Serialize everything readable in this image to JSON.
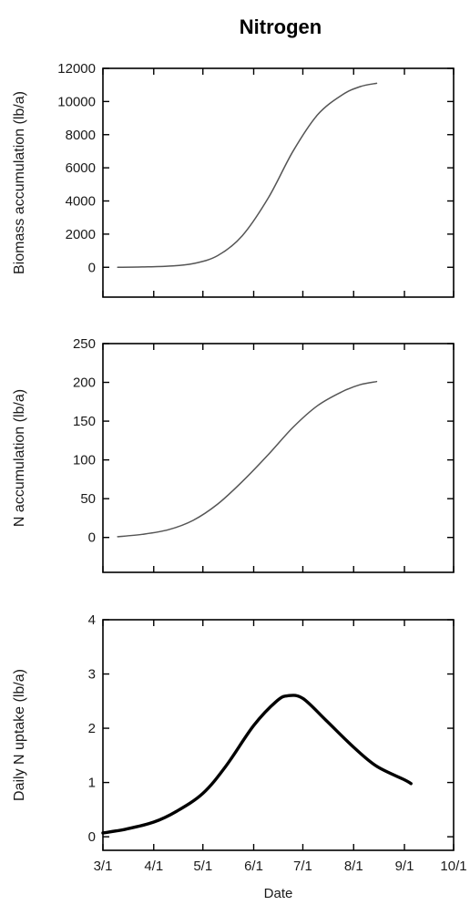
{
  "figure_title": "Nitrogen",
  "chart_data": [
    {
      "type": "line",
      "title": "",
      "xlabel": "",
      "ylabel": "Biomass accumulation (lb/a)",
      "xlim": [
        "3/1",
        "10/1"
      ],
      "ylim": [
        -1800,
        12000
      ],
      "yticks": [
        0,
        2000,
        4000,
        6000,
        8000,
        10000,
        12000
      ],
      "xticks": [
        "3/1",
        "4/1",
        "5/1",
        "6/1",
        "7/1",
        "8/1",
        "9/1",
        "10/1"
      ],
      "show_xtick_labels": false,
      "line_weight": "thin",
      "series": [
        {
          "x": [
            "3/10",
            "3/25",
            "4/10",
            "4/25",
            "5/10",
            "5/25",
            "6/10",
            "6/25",
            "7/10",
            "7/25",
            "8/5",
            "8/15"
          ],
          "y": [
            0,
            20,
            70,
            220,
            700,
            1900,
            4200,
            7000,
            9200,
            10400,
            10900,
            11100
          ]
        }
      ]
    },
    {
      "type": "line",
      "title": "",
      "xlabel": "",
      "ylabel": "N accumulation (lb/a)",
      "xlim": [
        "3/1",
        "10/1"
      ],
      "ylim": [
        -45,
        250
      ],
      "yticks": [
        0,
        50,
        100,
        150,
        200,
        250
      ],
      "xticks": [
        "3/1",
        "4/1",
        "5/1",
        "6/1",
        "7/1",
        "8/1",
        "9/1",
        "10/1"
      ],
      "show_xtick_labels": false,
      "line_weight": "thin",
      "series": [
        {
          "x": [
            "3/10",
            "3/25",
            "4/10",
            "4/25",
            "5/10",
            "5/25",
            "6/10",
            "6/25",
            "7/10",
            "7/25",
            "8/5",
            "8/15"
          ],
          "y": [
            1,
            4,
            10,
            22,
            43,
            72,
            107,
            142,
            170,
            188,
            197,
            201
          ]
        }
      ]
    },
    {
      "type": "line",
      "title": "",
      "xlabel": "Date",
      "ylabel": "Daily N uptake (lb/a)",
      "xlim": [
        "3/1",
        "10/1"
      ],
      "ylim": [
        -0.25,
        4
      ],
      "yticks": [
        0,
        1,
        2,
        3,
        4
      ],
      "xticks": [
        "3/1",
        "4/1",
        "5/1",
        "6/1",
        "7/1",
        "8/1",
        "9/1",
        "10/1"
      ],
      "show_xtick_labels": true,
      "line_weight": "thick",
      "series": [
        {
          "x": [
            "3/1",
            "3/15",
            "4/1",
            "4/15",
            "5/1",
            "5/15",
            "6/1",
            "6/15",
            "6/22",
            "7/1",
            "7/15",
            "8/1",
            "8/15",
            "9/1",
            "9/5"
          ],
          "y": [
            0.07,
            0.14,
            0.27,
            0.47,
            0.8,
            1.3,
            2.05,
            2.5,
            2.6,
            2.55,
            2.15,
            1.65,
            1.3,
            1.05,
            0.98
          ]
        }
      ]
    }
  ]
}
